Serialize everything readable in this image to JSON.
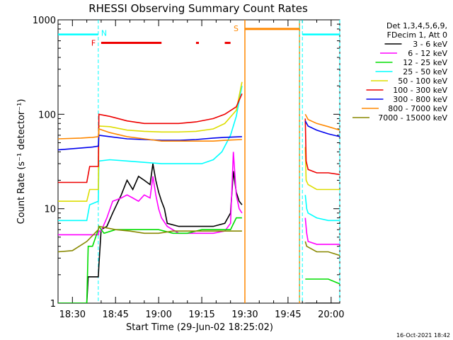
{
  "chart_data": {
    "type": "line",
    "title": "RHESSI Observing Summary Count Rates",
    "xlabel": "Start Time (29-Jun-02 18:25:02)",
    "ylabel": "Count Rate (s⁻¹ detector⁻¹)",
    "x_unit": "minutes after 18:25:02",
    "xlim": [
      0,
      98
    ],
    "ylim": [
      1,
      1000
    ],
    "yscale": "log",
    "x_ticks": [
      {
        "t": 5,
        "label": "18:30"
      },
      {
        "t": 20,
        "label": "18:45"
      },
      {
        "t": 35,
        "label": "19:00"
      },
      {
        "t": 50,
        "label": "19:15"
      },
      {
        "t": 65,
        "label": "19:30"
      },
      {
        "t": 80,
        "label": "19:45"
      },
      {
        "t": 95,
        "label": "20:00"
      }
    ],
    "y_ticks": [
      {
        "v": 1,
        "label": "1"
      },
      {
        "v": 10,
        "label": "10"
      },
      {
        "v": 100,
        "label": "100"
      },
      {
        "v": 1000,
        "label": "1000"
      }
    ],
    "legend": {
      "position": "right",
      "header": [
        "Det 1,3,4,5,6,9,",
        "FDecim 1, Att 0"
      ],
      "entries": [
        {
          "label": "3 - 6 keV",
          "color": "#000000"
        },
        {
          "label": "6 - 12 keV",
          "color": "#ff00ff"
        },
        {
          "label": "12 - 25 keV",
          "color": "#00dd00"
        },
        {
          "label": "25 - 50 keV",
          "color": "#00ffff"
        },
        {
          "label": "50 - 100 keV",
          "color": "#dddd00"
        },
        {
          "label": "100 - 300 keV",
          "color": "#ee0000"
        },
        {
          "label": "300 - 800 keV",
          "color": "#0000ee"
        },
        {
          "label": "800 - 7000 keV",
          "color": "#ff8800"
        },
        {
          "label": "7000 - 15000 keV",
          "color": "#888800"
        }
      ]
    },
    "annotations": {
      "night_bar": {
        "label": "N",
        "color": "#00ffff",
        "y": 700,
        "segments": [
          [
            0,
            14
          ],
          [
            85,
            98
          ]
        ]
      },
      "flare_bar": {
        "label": "F",
        "color": "#ee0000",
        "y": 570,
        "segments": [
          [
            15,
            36
          ],
          [
            48,
            49
          ],
          [
            58,
            60
          ]
        ]
      },
      "saa_bar": {
        "label": "S",
        "color": "#ff8800",
        "y": 800,
        "segments": [
          [
            65,
            84
          ]
        ]
      },
      "night_lines": {
        "color": "#00ffff",
        "t": [
          14,
          84,
          85,
          98
        ]
      },
      "saa_lines": {
        "color": "#ff8800",
        "t": [
          65,
          84
        ]
      },
      "data_gap": [
        64,
        86
      ]
    },
    "series": [
      {
        "name": "3 - 6 keV",
        "color": "#000000",
        "points": [
          [
            0,
            1.0
          ],
          [
            10,
            1.0
          ],
          [
            10.5,
            1.9
          ],
          [
            14,
            1.9
          ],
          [
            14.2,
            2.5
          ],
          [
            15,
            6
          ],
          [
            17,
            6.5
          ],
          [
            19,
            9
          ],
          [
            22,
            14
          ],
          [
            24,
            20
          ],
          [
            26,
            16
          ],
          [
            28,
            22
          ],
          [
            30,
            20
          ],
          [
            32,
            18
          ],
          [
            33,
            30
          ],
          [
            34,
            20
          ],
          [
            35,
            15
          ],
          [
            36,
            12
          ],
          [
            37,
            10
          ],
          [
            38,
            7
          ],
          [
            42,
            6.5
          ],
          [
            46,
            6.5
          ],
          [
            50,
            6.5
          ],
          [
            54,
            6.5
          ],
          [
            58,
            7
          ],
          [
            60,
            9
          ],
          [
            61,
            25
          ],
          [
            62,
            15
          ],
          [
            63,
            12
          ],
          [
            64,
            11
          ],
          [
            86,
            1.0
          ],
          [
            88,
            1.0
          ],
          [
            90,
            1.0
          ],
          [
            98,
            1.0
          ]
        ]
      },
      {
        "name": "6 - 12 keV",
        "color": "#ff00ff",
        "points": [
          [
            0,
            5.3
          ],
          [
            14,
            5.3
          ],
          [
            14.2,
            5.8
          ],
          [
            15,
            5.8
          ],
          [
            17,
            8
          ],
          [
            19,
            12
          ],
          [
            22,
            13
          ],
          [
            24,
            14
          ],
          [
            26,
            13
          ],
          [
            28,
            12
          ],
          [
            30,
            14
          ],
          [
            32,
            13
          ],
          [
            33,
            22
          ],
          [
            34,
            14
          ],
          [
            35,
            10
          ],
          [
            36,
            8
          ],
          [
            38,
            6.5
          ],
          [
            42,
            5.5
          ],
          [
            46,
            5.5
          ],
          [
            50,
            5.5
          ],
          [
            54,
            5.5
          ],
          [
            58,
            5.8
          ],
          [
            60,
            7
          ],
          [
            61,
            40
          ],
          [
            62,
            14
          ],
          [
            63,
            10
          ],
          [
            64,
            9
          ],
          [
            86,
            8
          ],
          [
            86.5,
            5.5
          ],
          [
            87,
            4.5
          ],
          [
            90,
            4.2
          ],
          [
            98,
            4.2
          ]
        ]
      },
      {
        "name": "12 - 25 keV",
        "color": "#00dd00",
        "points": [
          [
            0,
            1.0
          ],
          [
            10,
            1.0
          ],
          [
            10.5,
            4
          ],
          [
            12,
            4
          ],
          [
            14,
            6
          ],
          [
            14.2,
            6.5
          ],
          [
            16,
            5.5
          ],
          [
            20,
            6
          ],
          [
            25,
            6
          ],
          [
            30,
            6
          ],
          [
            35,
            6
          ],
          [
            40,
            5.5
          ],
          [
            45,
            5.5
          ],
          [
            50,
            6
          ],
          [
            55,
            6
          ],
          [
            60,
            6
          ],
          [
            62,
            8
          ],
          [
            64,
            8
          ],
          [
            86,
            1.8
          ],
          [
            90,
            1.8
          ],
          [
            94,
            1.8
          ],
          [
            98,
            1.6
          ]
        ]
      },
      {
        "name": "25 - 50 keV",
        "color": "#00ffff",
        "points": [
          [
            0,
            7.5
          ],
          [
            10,
            7.5
          ],
          [
            11,
            11
          ],
          [
            14,
            12
          ],
          [
            14.2,
            32
          ],
          [
            18,
            33
          ],
          [
            24,
            32
          ],
          [
            30,
            31
          ],
          [
            36,
            30
          ],
          [
            40,
            30
          ],
          [
            46,
            30
          ],
          [
            50,
            30
          ],
          [
            54,
            33
          ],
          [
            57,
            40
          ],
          [
            60,
            60
          ],
          [
            62,
            95
          ],
          [
            64,
            200
          ],
          [
            86,
            14
          ],
          [
            86.5,
            10
          ],
          [
            87,
            9
          ],
          [
            90,
            8
          ],
          [
            94,
            7.5
          ],
          [
            98,
            7.5
          ]
        ]
      },
      {
        "name": "50 - 100 keV",
        "color": "#dddd00",
        "points": [
          [
            0,
            12
          ],
          [
            10,
            12
          ],
          [
            11,
            16
          ],
          [
            14,
            16
          ],
          [
            14.2,
            75
          ],
          [
            18,
            74
          ],
          [
            24,
            68
          ],
          [
            30,
            66
          ],
          [
            36,
            65
          ],
          [
            42,
            65
          ],
          [
            48,
            66
          ],
          [
            54,
            70
          ],
          [
            58,
            80
          ],
          [
            62,
            110
          ],
          [
            64,
            220
          ],
          [
            86,
            45
          ],
          [
            86.3,
            20
          ],
          [
            87,
            18
          ],
          [
            90,
            16
          ],
          [
            94,
            16
          ],
          [
            98,
            16
          ]
        ]
      },
      {
        "name": "100 - 300 keV",
        "color": "#ee0000",
        "points": [
          [
            0,
            19
          ],
          [
            10,
            19
          ],
          [
            11,
            28
          ],
          [
            14,
            28
          ],
          [
            14.2,
            100
          ],
          [
            18,
            95
          ],
          [
            24,
            85
          ],
          [
            30,
            80
          ],
          [
            36,
            80
          ],
          [
            42,
            80
          ],
          [
            48,
            83
          ],
          [
            54,
            90
          ],
          [
            58,
            100
          ],
          [
            62,
            120
          ],
          [
            64,
            165
          ],
          [
            86,
            90
          ],
          [
            86.3,
            32
          ],
          [
            87,
            26
          ],
          [
            90,
            24
          ],
          [
            94,
            24
          ],
          [
            98,
            23
          ]
        ]
      },
      {
        "name": "300 - 800 keV",
        "color": "#0000ee",
        "points": [
          [
            0,
            42
          ],
          [
            8,
            44
          ],
          [
            12,
            45
          ],
          [
            14,
            46
          ],
          [
            14.2,
            60
          ],
          [
            18,
            58
          ],
          [
            24,
            55
          ],
          [
            30,
            54
          ],
          [
            36,
            53
          ],
          [
            42,
            53
          ],
          [
            48,
            54
          ],
          [
            54,
            56
          ],
          [
            58,
            57
          ],
          [
            64,
            58
          ],
          [
            86,
            85
          ],
          [
            87,
            75
          ],
          [
            90,
            68
          ],
          [
            94,
            62
          ],
          [
            98,
            58
          ]
        ]
      },
      {
        "name": "800 - 7000 keV",
        "color": "#ff8800",
        "points": [
          [
            0,
            55
          ],
          [
            8,
            56
          ],
          [
            12,
            57
          ],
          [
            14,
            58
          ],
          [
            14.2,
            70
          ],
          [
            18,
            64
          ],
          [
            24,
            58
          ],
          [
            30,
            55
          ],
          [
            36,
            52
          ],
          [
            42,
            52
          ],
          [
            48,
            52
          ],
          [
            54,
            52
          ],
          [
            58,
            53
          ],
          [
            64,
            54
          ],
          [
            86,
            100
          ],
          [
            87,
            88
          ],
          [
            90,
            80
          ],
          [
            94,
            74
          ],
          [
            98,
            68
          ]
        ]
      },
      {
        "name": "7000 - 15000 keV",
        "color": "#888800",
        "points": [
          [
            0,
            3.5
          ],
          [
            5,
            3.6
          ],
          [
            10,
            4.5
          ],
          [
            14,
            6
          ],
          [
            14.2,
            6.5
          ],
          [
            20,
            6
          ],
          [
            25,
            5.8
          ],
          [
            30,
            5.5
          ],
          [
            35,
            5.5
          ],
          [
            40,
            5.8
          ],
          [
            45,
            5.8
          ],
          [
            50,
            5.8
          ],
          [
            55,
            5.8
          ],
          [
            60,
            5.8
          ],
          [
            64,
            5.8
          ],
          [
            86,
            4.5
          ],
          [
            86.5,
            4
          ],
          [
            90,
            3.5
          ],
          [
            94,
            3.5
          ],
          [
            98,
            3.2
          ]
        ]
      }
    ]
  },
  "footer": {
    "timestamp": "16-Oct-2021 18:42"
  }
}
